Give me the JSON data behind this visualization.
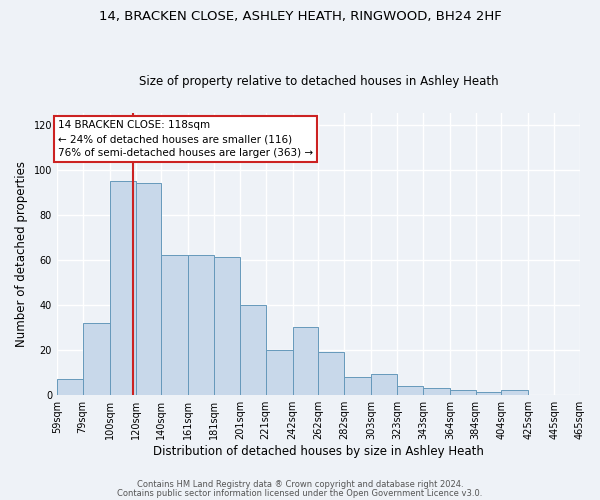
{
  "title1": "14, BRACKEN CLOSE, ASHLEY HEATH, RINGWOOD, BH24 2HF",
  "title2": "Size of property relative to detached houses in Ashley Heath",
  "xlabel": "Distribution of detached houses by size in Ashley Heath",
  "ylabel": "Number of detached properties",
  "bin_labels": [
    "59sqm",
    "79sqm",
    "100sqm",
    "120sqm",
    "140sqm",
    "161sqm",
    "181sqm",
    "201sqm",
    "221sqm",
    "242sqm",
    "262sqm",
    "282sqm",
    "303sqm",
    "323sqm",
    "343sqm",
    "364sqm",
    "384sqm",
    "404sqm",
    "425sqm",
    "445sqm",
    "465sqm"
  ],
  "bar_values": [
    7,
    32,
    95,
    94,
    62,
    62,
    61,
    40,
    20,
    30,
    19,
    8,
    9,
    4,
    3,
    2,
    1,
    2,
    0,
    0,
    0
  ],
  "bar_color": "#c8d8ea",
  "bar_edge_color": "#6699bb",
  "property_line_x": 118,
  "bin_edges": [
    59,
    79,
    100,
    120,
    140,
    161,
    181,
    201,
    221,
    242,
    262,
    282,
    303,
    323,
    343,
    364,
    384,
    404,
    425,
    445,
    465
  ],
  "annotation_text": "14 BRACKEN CLOSE: 118sqm\n← 24% of detached houses are smaller (116)\n76% of semi-detached houses are larger (363) →",
  "vline_color": "#cc2222",
  "annotation_box_edgecolor": "#cc2222",
  "ylim": [
    0,
    125
  ],
  "yticks": [
    0,
    20,
    40,
    60,
    80,
    100,
    120
  ],
  "footer1": "Contains HM Land Registry data ® Crown copyright and database right 2024.",
  "footer2": "Contains public sector information licensed under the Open Government Licence v3.0.",
  "bg_color": "#eef2f7",
  "grid_color": "#ffffff",
  "title1_fontsize": 9.5,
  "title2_fontsize": 8.5,
  "xlabel_fontsize": 8.5,
  "ylabel_fontsize": 8.5,
  "tick_fontsize": 7,
  "ann_fontsize": 7.5,
  "footer_fontsize": 6
}
